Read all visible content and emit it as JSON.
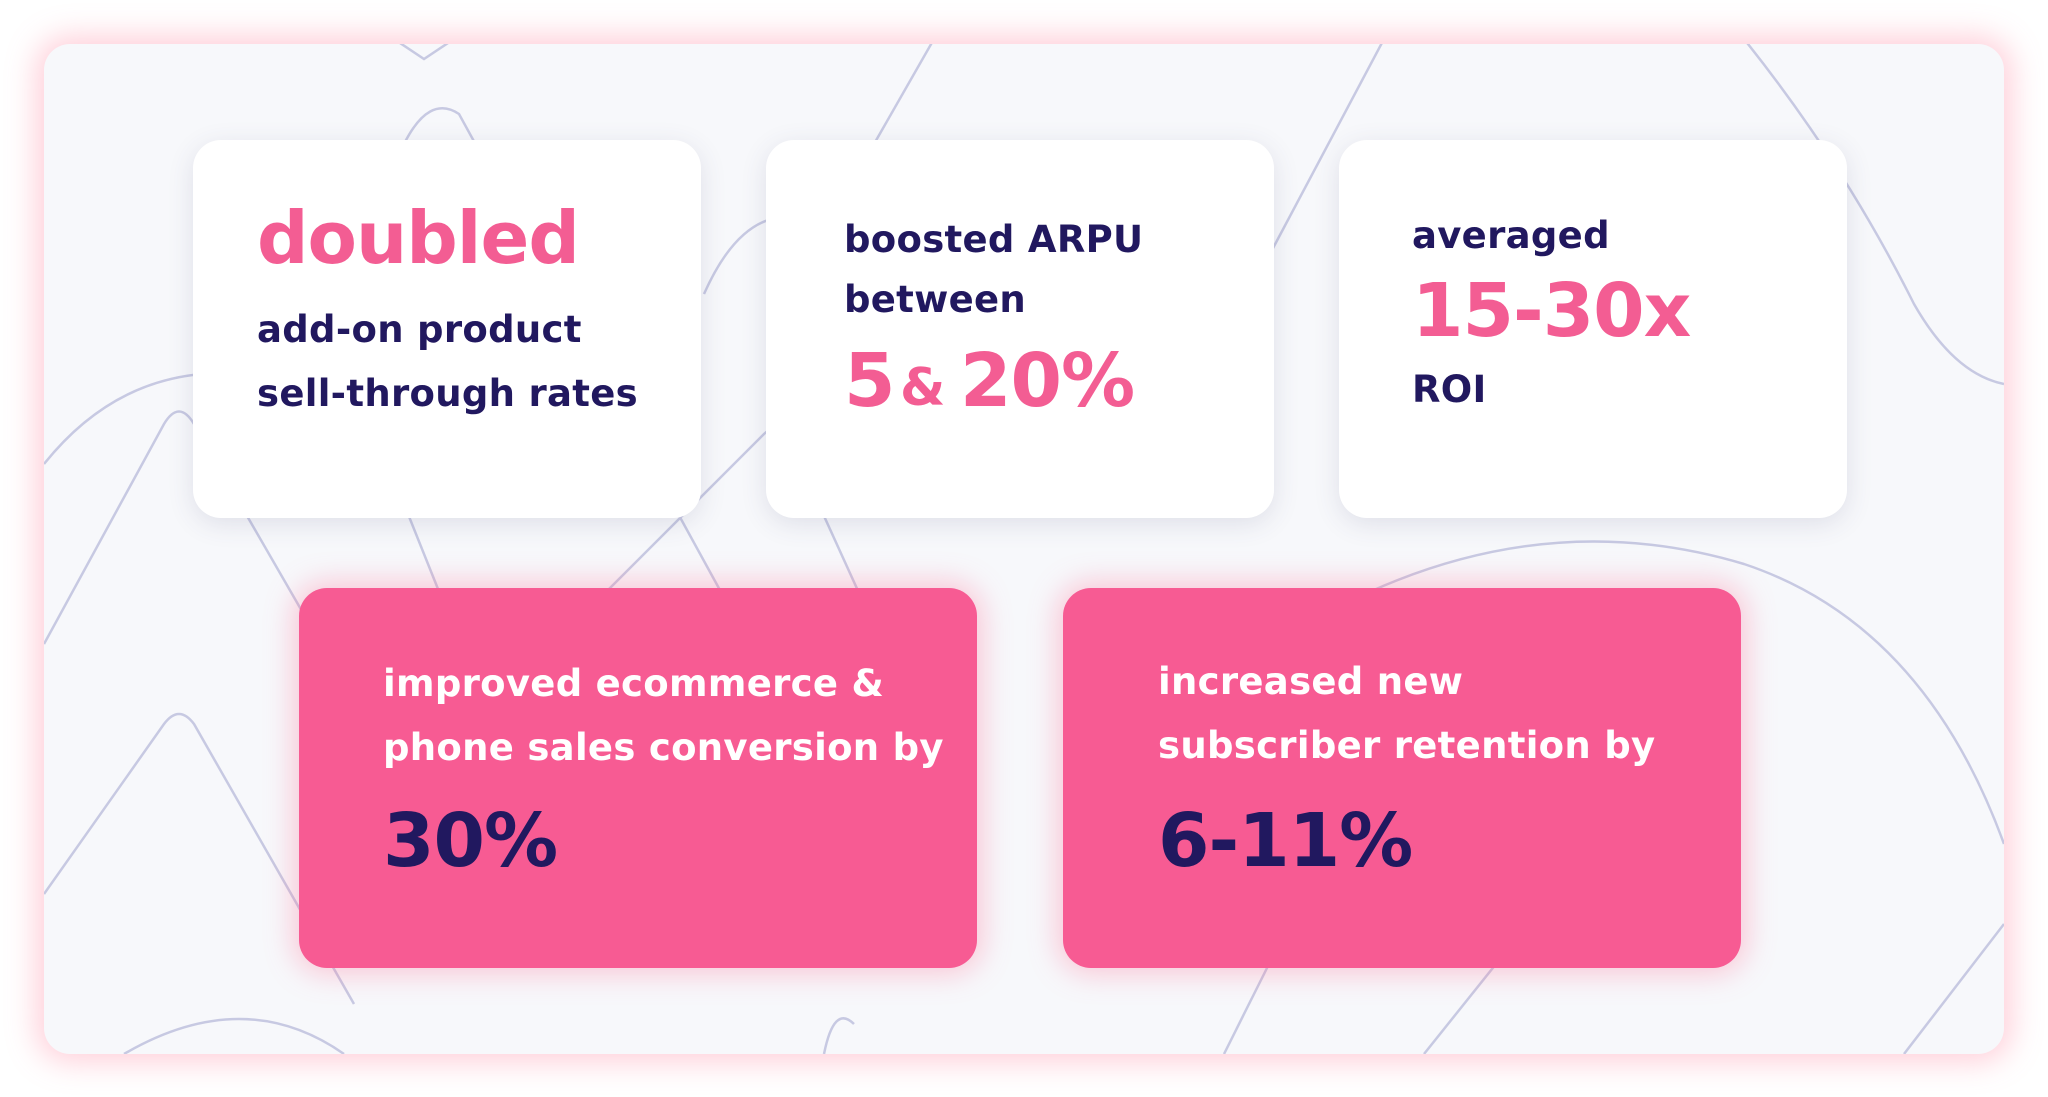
{
  "colors": {
    "brand_pink": "#f75b93",
    "pink_text": "#f35d93",
    "navy": "#21185f",
    "background": "#f7f8fb",
    "card_white": "#ffffff"
  },
  "stats_top": [
    {
      "headline": "doubled",
      "line1": "add-on product",
      "line2": "sell-through rates"
    },
    {
      "line1": "boosted ARPU",
      "line2": "between",
      "value_a": "5",
      "joiner": "&",
      "value_b": "20%"
    },
    {
      "line1": "averaged",
      "headline": "15-30x",
      "line2": "ROI"
    }
  ],
  "stats_bottom": [
    {
      "line1": "improved ecommerce &",
      "line2": "phone sales conversion by",
      "value": "30%"
    },
    {
      "line1": "increased new",
      "line2": "subscriber retention by",
      "value": "6-11%"
    }
  ]
}
